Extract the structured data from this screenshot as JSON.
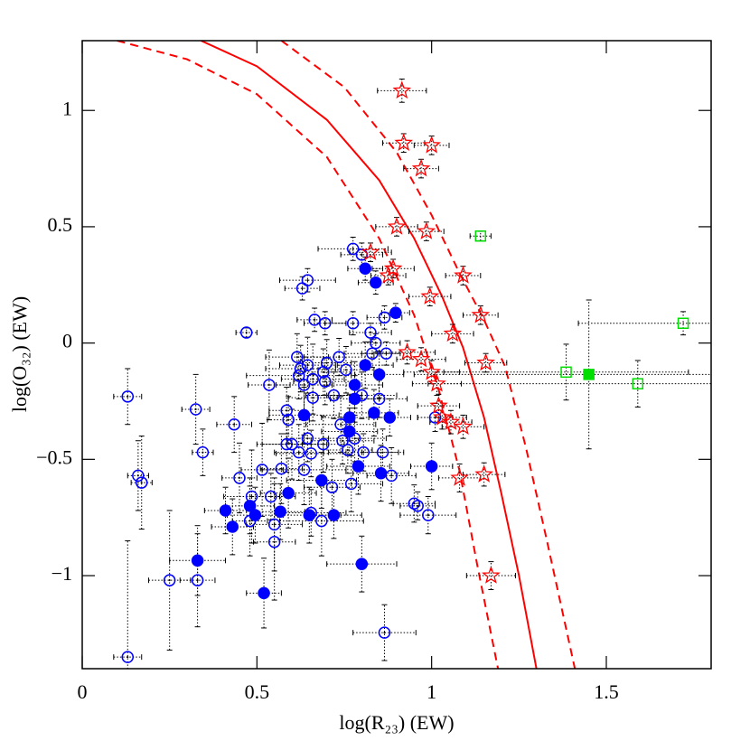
{
  "chart_data": {
    "type": "scatter",
    "x_label": "log(R₂₃) (EW)",
    "y_label": "log(O₃₂) (EW)",
    "xlim": [
      0,
      1.8
    ],
    "ylim": [
      -1.4,
      1.3
    ],
    "xticks": [
      0,
      0.5,
      1,
      1.5
    ],
    "yticks": [
      {
        "value": -1,
        "label": "−1"
      },
      {
        "value": -0.5,
        "label": "−0.5"
      },
      0,
      0.5,
      1
    ],
    "series": [
      {
        "marker": "circle",
        "filled": false,
        "color": "#0000ff",
        "x": [
          0.13,
          0.13,
          0.16,
          0.17,
          0.25,
          0.33,
          0.325,
          0.345,
          0.435,
          0.45,
          0.47,
          0.535,
          0.515,
          0.485,
          0.48,
          0.54,
          0.55,
          0.55,
          0.57,
          0.585,
          0.59,
          0.585,
          0.63,
          0.645,
          0.665,
          0.695,
          0.615,
          0.625,
          0.645,
          0.66,
          0.66,
          0.62,
          0.635,
          0.6,
          0.62,
          0.645,
          0.655,
          0.635,
          0.69,
          0.69,
          0.7,
          0.695,
          0.735,
          0.72,
          0.755,
          0.74,
          0.745,
          0.76,
          0.685,
          0.715,
          0.655,
          0.77,
          0.775,
          0.8,
          0.775,
          0.825,
          0.84,
          0.865,
          0.83,
          0.87,
          0.8,
          0.85,
          0.86,
          0.885,
          0.78,
          0.805,
          0.95,
          0.96,
          0.99,
          1.01,
          0.865
        ],
        "values": [
          -0.23,
          -1.35,
          -0.57,
          -0.6,
          -1.02,
          -1.02,
          -0.285,
          -0.47,
          -0.35,
          -0.58,
          0.045,
          -0.18,
          -0.545,
          -0.66,
          -0.765,
          -0.66,
          -0.78,
          -0.855,
          -0.54,
          -0.435,
          -0.33,
          -0.29,
          0.235,
          0.27,
          0.1,
          0.085,
          -0.06,
          -0.11,
          -0.095,
          -0.155,
          -0.235,
          -0.14,
          -0.18,
          -0.435,
          -0.47,
          -0.41,
          -0.475,
          -0.545,
          -0.435,
          -0.125,
          -0.085,
          -0.165,
          -0.06,
          -0.225,
          -0.115,
          -0.35,
          -0.42,
          -0.46,
          -0.765,
          -0.62,
          -0.73,
          -0.605,
          0.405,
          0.38,
          0.085,
          0.045,
          0.0,
          0.11,
          -0.045,
          -0.045,
          -0.225,
          -0.24,
          -0.47,
          -0.57,
          -0.41,
          -0.47,
          -0.69,
          -0.7,
          -0.74,
          -0.32,
          -1.245
        ],
        "xerr": [
          0.04,
          0.04,
          0.03,
          0.03,
          0.06,
          0.05,
          0.04,
          0.03,
          0.05,
          0.05,
          0.03,
          0.06,
          0.06,
          0.08,
          0.05,
          0.07,
          0.08,
          0.06,
          0.06,
          0.07,
          0.06,
          0.05,
          0.05,
          0.08,
          0.05,
          0.06,
          0.09,
          0.1,
          0.08,
          0.09,
          0.07,
          0.15,
          0.08,
          0.1,
          0.07,
          0.06,
          0.1,
          0.12,
          0.06,
          0.08,
          0.07,
          0.09,
          0.1,
          0.08,
          0.08,
          0.1,
          0.09,
          0.07,
          0.12,
          0.08,
          0.1,
          0.09,
          0.1,
          0.06,
          0.08,
          0.06,
          0.07,
          0.05,
          0.08,
          0.07,
          0.1,
          0.08,
          0.06,
          0.07,
          0.09,
          0.1,
          0.06,
          0.05,
          0.08,
          0.05,
          0.09
        ],
        "yerr": [
          0.12,
          0.5,
          0.15,
          0.2,
          0.3,
          0.2,
          0.15,
          0.1,
          0.12,
          0.15,
          0.02,
          0.15,
          0.2,
          0.2,
          0.15,
          0.1,
          0.2,
          0.25,
          0.15,
          0.12,
          0.1,
          0.1,
          0.05,
          0.05,
          0.05,
          0.05,
          0.1,
          0.1,
          0.12,
          0.15,
          0.1,
          0.1,
          0.12,
          0.15,
          0.12,
          0.1,
          0.1,
          0.15,
          0.12,
          0.1,
          0.1,
          0.1,
          0.08,
          0.1,
          0.1,
          0.12,
          0.1,
          0.1,
          0.15,
          0.12,
          0.1,
          0.12,
          0.05,
          0.05,
          0.05,
          0.04,
          0.04,
          0.05,
          0.06,
          0.05,
          0.1,
          0.08,
          0.1,
          0.12,
          0.1,
          0.08,
          0.08,
          0.06,
          0.08,
          0.06,
          0.12
        ]
      },
      {
        "marker": "circle",
        "filled": true,
        "color": "#0000ff",
        "x": [
          0.81,
          0.84,
          0.897,
          0.81,
          0.85,
          0.78,
          0.78,
          0.635,
          0.765,
          0.835,
          0.88,
          0.765,
          0.79,
          0.855,
          1.0,
          0.685,
          0.59,
          0.41,
          0.48,
          0.495,
          0.567,
          0.65,
          0.72,
          0.43,
          0.33,
          0.8,
          0.52
        ],
        "values": [
          0.32,
          0.26,
          0.13,
          -0.095,
          -0.135,
          -0.18,
          -0.24,
          -0.31,
          -0.32,
          -0.3,
          -0.32,
          -0.38,
          -0.53,
          -0.56,
          -0.53,
          -0.59,
          -0.645,
          -0.72,
          -0.7,
          -0.74,
          -0.725,
          -0.74,
          -0.74,
          -0.79,
          -0.935,
          -0.95,
          -1.075
        ],
        "xerr": [
          0.05,
          0.05,
          0.04,
          0.08,
          0.07,
          0.08,
          0.07,
          0.1,
          0.08,
          0.07,
          0.06,
          0.08,
          0.09,
          0.08,
          0.06,
          0.1,
          0.08,
          0.06,
          0.07,
          0.08,
          0.07,
          0.09,
          0.08,
          0.06,
          0.08,
          0.1,
          0.05
        ],
        "yerr": [
          0.05,
          0.05,
          0.04,
          0.1,
          0.1,
          0.1,
          0.1,
          0.12,
          0.1,
          0.1,
          0.08,
          0.1,
          0.12,
          0.12,
          0.1,
          0.12,
          0.15,
          0.1,
          0.12,
          0.12,
          0.12,
          0.12,
          0.1,
          0.12,
          0.15,
          0.12,
          0.15
        ]
      },
      {
        "marker": "star",
        "filled": false,
        "color": "#ff0000",
        "x": [
          0.915,
          0.92,
          1.0,
          0.97,
          0.9,
          0.985,
          0.825,
          0.89,
          0.876,
          0.995,
          1.09,
          1.14,
          1.06,
          1.155,
          0.93,
          0.97,
          1.0,
          1.015,
          1.02,
          1.03,
          1.055,
          1.09,
          1.08,
          1.15,
          1.17
        ],
        "values": [
          1.085,
          0.86,
          0.85,
          0.75,
          0.5,
          0.48,
          0.39,
          0.32,
          0.29,
          0.2,
          0.29,
          0.12,
          0.04,
          -0.085,
          -0.04,
          -0.07,
          -0.125,
          -0.175,
          -0.27,
          -0.32,
          -0.34,
          -0.36,
          -0.58,
          -0.565,
          -1.0
        ],
        "xerr": [
          0.07,
          0.06,
          0.05,
          0.05,
          0.06,
          0.05,
          0.06,
          0.06,
          0.05,
          0.06,
          0.05,
          0.05,
          0.06,
          0.06,
          0.08,
          0.07,
          0.08,
          0.07,
          0.06,
          0.07,
          0.06,
          0.06,
          0.06,
          0.06,
          0.07
        ],
        "yerr": [
          0.05,
          0.04,
          0.04,
          0.04,
          0.04,
          0.04,
          0.04,
          0.04,
          0.04,
          0.04,
          0.04,
          0.04,
          0.04,
          0.04,
          0.05,
          0.05,
          0.05,
          0.05,
          0.05,
          0.05,
          0.05,
          0.05,
          0.06,
          0.05,
          0.06
        ]
      },
      {
        "marker": "square",
        "filled": false,
        "color": "#00dd00",
        "x": [
          1.14,
          1.385,
          1.59,
          1.72
        ],
        "values": [
          0.46,
          -0.125,
          -0.175,
          0.085
        ],
        "xerr": [
          0.03,
          0.35,
          0.6,
          0.3
        ],
        "yerr": [
          0.02,
          0.12,
          0.1,
          0.05
        ]
      },
      {
        "marker": "square",
        "filled": true,
        "color": "#00dd00",
        "x": [
          1.45
        ],
        "values": [
          -0.135
        ],
        "xerr": [
          0.5
        ],
        "yerr": [
          0.32
        ]
      }
    ],
    "lines": [
      {
        "color": "#ff0000",
        "dashed": false,
        "x": [
          0.34,
          0.5,
          0.7,
          0.85,
          0.95,
          1.03,
          1.09,
          1.15,
          1.2,
          1.25,
          1.3
        ],
        "values": [
          1.3,
          1.19,
          0.96,
          0.7,
          0.45,
          0.2,
          -0.02,
          -0.32,
          -0.65,
          -1.0,
          -1.4
        ]
      },
      {
        "color": "#ff0000",
        "dashed": true,
        "x": [
          0.1,
          0.3,
          0.5,
          0.7,
          0.85,
          0.95,
          1.02,
          1.08,
          1.13,
          1.19
        ],
        "values": [
          1.3,
          1.22,
          1.07,
          0.8,
          0.45,
          0.12,
          -0.2,
          -0.55,
          -0.95,
          -1.4
        ]
      },
      {
        "color": "#ff0000",
        "dashed": true,
        "x": [
          0.57,
          0.75,
          0.9,
          1.0,
          1.08,
          1.15,
          1.21,
          1.27,
          1.33,
          1.41
        ],
        "values": [
          1.3,
          1.1,
          0.82,
          0.55,
          0.3,
          0.1,
          -0.1,
          -0.45,
          -0.85,
          -1.4
        ]
      }
    ]
  }
}
